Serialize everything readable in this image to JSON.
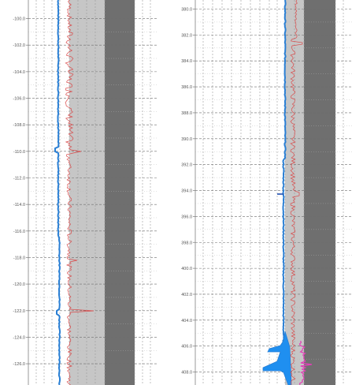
{
  "chart_data": [
    {
      "type": "line",
      "depth_axis_ticks": [
        "-100.0",
        "-102.0",
        "-104.0",
        "-106.0",
        "-108.0",
        "-110.0",
        "-112.0",
        "-114.0",
        "-116.0",
        "-118.0",
        "-120.0",
        "-122.0",
        "-124.0",
        "-126.0"
      ],
      "depth_range": [
        -98.6,
        -127.6
      ],
      "series": [
        {
          "color": "#2a7fd4"
        },
        {
          "color": "#d94b4b"
        }
      ]
    },
    {
      "type": "line",
      "depth_axis_ticks": [
        "380.0",
        "382.0",
        "384.0",
        "386.0",
        "388.0",
        "390.0",
        "392.0",
        "394.0",
        "396.0",
        "398.0",
        "400.0",
        "402.0",
        "404.0",
        "406.0",
        "408.0"
      ],
      "depth_range": [
        379.3,
        409.0
      ],
      "series": [
        {
          "color": "#2a7fd4"
        },
        {
          "color": "#d94b4b"
        },
        {
          "color": "#e33fb8"
        }
      ]
    }
  ],
  "colors": {
    "background": "#ffffff",
    "band_light": "#c6c6c6",
    "band_dark": "#6f6f6f",
    "grid": "#7a7a7a",
    "blue_fill": "#1f8ff0"
  }
}
